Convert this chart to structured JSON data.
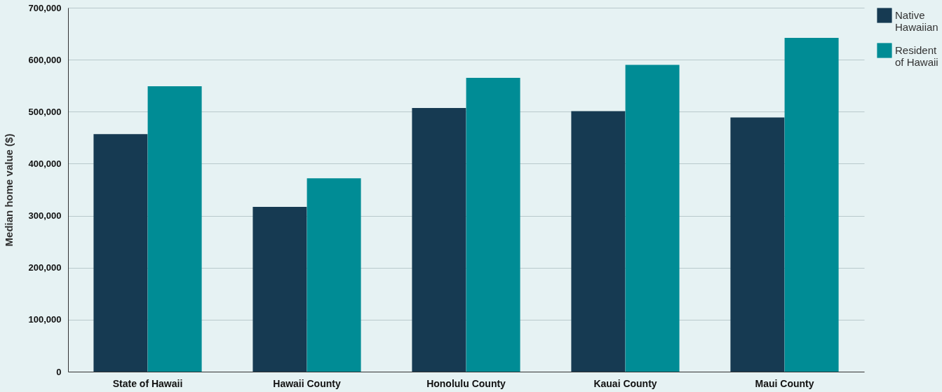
{
  "chart_data": {
    "type": "bar",
    "ylabel": "Median home value ($)",
    "categories": [
      "State of Hawaii",
      "Hawaii County",
      "Honolulu County",
      "Kauai County",
      "Maui County"
    ],
    "series": [
      {
        "name": "Native Hawaiian",
        "color": "#163a52",
        "values": [
          457000,
          317000,
          507000,
          501000,
          489000
        ]
      },
      {
        "name": "Resident of Hawaii",
        "color": "#008c95",
        "values": [
          549000,
          372000,
          565000,
          590000,
          642000
        ]
      }
    ],
    "ylim": [
      0,
      700000
    ],
    "yticks": [
      0,
      {
        "value": 100000,
        "label": "100,000"
      },
      {
        "value": 200000,
        "label": "200,000"
      },
      {
        "value": 300000,
        "label": "300,000"
      },
      {
        "value": 400000,
        "label": "400,000"
      },
      {
        "value": 500000,
        "label": "500,000"
      },
      {
        "value": 600000,
        "label": "600,000"
      },
      {
        "value": 700000,
        "label": "700,000"
      }
    ],
    "grid": "y",
    "legend": "right"
  }
}
